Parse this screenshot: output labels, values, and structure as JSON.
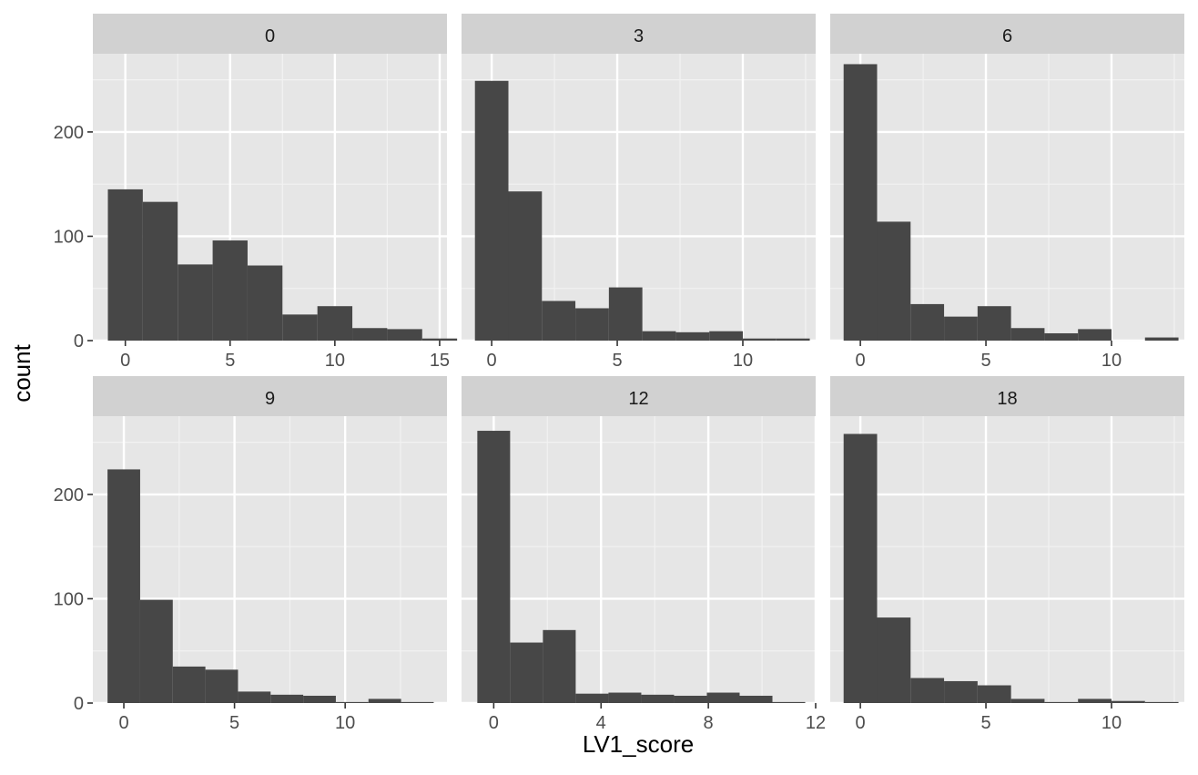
{
  "chart_data": {
    "type": "bar",
    "title": "",
    "xlabel": "LV1_score",
    "ylabel": "count",
    "facet_layout": {
      "rows": 2,
      "cols": 3
    },
    "shared_y": {
      "ylim": [
        0,
        275
      ],
      "ticks": [
        0,
        100,
        200
      ]
    },
    "grid": true,
    "bar_color": "#474747",
    "panel_background": "#e6e6e6",
    "strip_background": "#d1d1d1",
    "facets": [
      {
        "label": "0",
        "xlim": [
          -1.55,
          15.35
        ],
        "xticks": [
          0,
          5,
          10,
          15
        ],
        "binwidth": 1.6667,
        "first_bin_left": -0.8333,
        "values": [
          145,
          133,
          73,
          96,
          72,
          25,
          33,
          12,
          11,
          2
        ]
      },
      {
        "label": "3",
        "xlim": [
          -1.2,
          12.9
        ],
        "xticks": [
          0,
          5,
          10
        ],
        "binwidth": 1.3333,
        "first_bin_left": -0.6667,
        "values": [
          249,
          143,
          38,
          31,
          51,
          9,
          8,
          9,
          2,
          2
        ]
      },
      {
        "label": "6",
        "xlim": [
          -1.2,
          12.9
        ],
        "xticks": [
          0,
          5,
          10
        ],
        "binwidth": 1.3333,
        "first_bin_left": -0.6667,
        "values": [
          265,
          114,
          35,
          23,
          33,
          12,
          7,
          11,
          0,
          3
        ]
      },
      {
        "label": "9",
        "xlim": [
          -1.4,
          14.6
        ],
        "xticks": [
          0,
          5,
          10
        ],
        "binwidth": 1.4737,
        "first_bin_left": -0.7368,
        "values": [
          224,
          99,
          35,
          32,
          11,
          8,
          7,
          1,
          4,
          1
        ]
      },
      {
        "label": "12",
        "xlim": [
          -1.2,
          12.0
        ],
        "xticks": [
          0,
          4,
          8,
          12
        ],
        "binwidth": 1.2222,
        "first_bin_left": -0.6111,
        "values": [
          261,
          58,
          70,
          9,
          10,
          8,
          7,
          10,
          7,
          1
        ]
      },
      {
        "label": "18",
        "xlim": [
          -1.2,
          12.9
        ],
        "xticks": [
          0,
          5,
          10
        ],
        "binwidth": 1.3333,
        "first_bin_left": -0.6667,
        "values": [
          258,
          82,
          24,
          21,
          17,
          4,
          1,
          4,
          2,
          1
        ]
      }
    ]
  }
}
